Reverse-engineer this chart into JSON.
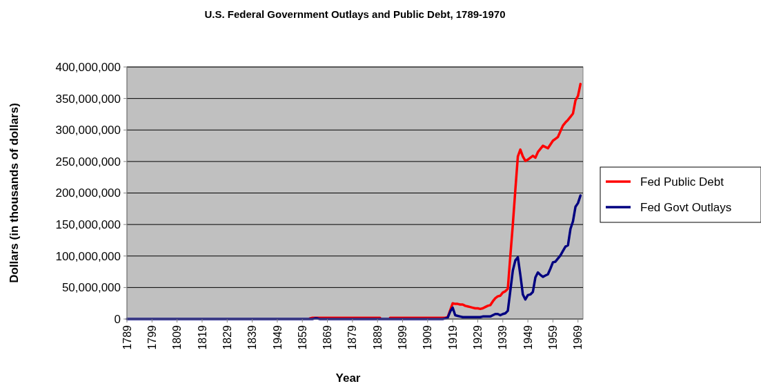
{
  "chart_data": {
    "type": "line",
    "title": "U.S. Federal Government Outlays and Public Debt, 1789-1970",
    "xlabel": "Year",
    "ylabel": "Dollars (in thousands of dollars)",
    "categories": [
      "1789",
      null,
      null,
      null,
      null,
      null,
      null,
      null,
      null,
      null,
      "1799",
      null,
      null,
      null,
      null,
      null,
      null,
      null,
      null,
      null,
      "1809",
      null,
      null,
      null,
      null,
      null,
      null,
      null,
      null,
      null,
      "1819",
      null,
      null,
      null,
      null,
      null,
      null,
      null,
      null,
      null,
      "1829",
      null,
      null,
      null,
      null,
      null,
      null,
      null,
      null,
      null,
      "1839",
      null,
      null,
      null,
      null,
      null,
      null,
      null,
      null,
      null,
      "1949",
      null,
      null,
      null,
      null,
      null,
      null,
      null,
      null,
      null,
      "1859",
      null,
      null,
      null,
      null,
      null,
      null,
      null,
      null,
      null,
      "1869",
      null,
      null,
      null,
      null,
      null,
      null,
      null,
      null,
      null,
      "1879",
      null,
      null,
      null,
      null,
      null,
      null,
      null,
      null,
      null,
      "1889",
      null,
      null,
      null,
      null,
      null,
      null,
      null,
      null,
      null,
      "1899",
      null,
      null,
      null,
      null,
      null,
      null,
      null,
      null,
      null,
      "1909",
      null,
      null,
      null,
      null,
      null,
      null,
      null,
      null,
      null,
      "1919",
      null,
      null,
      null,
      null,
      null,
      null,
      null,
      null,
      null,
      "1929",
      null,
      null,
      null,
      null,
      null,
      null,
      null,
      null,
      null,
      "1939",
      null,
      null,
      null,
      null,
      null,
      null,
      null,
      null,
      null,
      "1949",
      null,
      null,
      null,
      null,
      null,
      null,
      null,
      null,
      null,
      "1959",
      null,
      null,
      null,
      null,
      null,
      null,
      null,
      null,
      null,
      "1969",
      null
    ],
    "ylim": [
      0,
      400000000
    ],
    "yticks": [
      0,
      {
        "value": 50000000,
        "label": "50,000,000"
      },
      {
        "value": 100000000,
        "label": "100,000,000"
      },
      {
        "value": 150000000,
        "label": "150,000,000"
      },
      {
        "value": 200000000,
        "label": "200,000,000"
      },
      {
        "value": 250000000,
        "label": "250,000,000"
      },
      {
        "value": 300000000,
        "label": "300,000,000"
      },
      {
        "value": 350000000,
        "label": "350,000,000"
      },
      {
        "value": 400000000,
        "label": "400,000,000"
      }
    ],
    "grid": "y",
    "legend": "right",
    "line_style": "solid",
    "series": [
      {
        "name": "Fed Public Debt",
        "color": "#ff0000",
        "values": [
          null,
          null,
          null,
          null,
          null,
          null,
          null,
          null,
          null,
          null,
          null,
          null,
          null,
          null,
          null,
          null,
          null,
          null,
          null,
          null,
          null,
          null,
          null,
          null,
          null,
          null,
          null,
          null,
          null,
          null,
          null,
          null,
          null,
          null,
          null,
          null,
          null,
          null,
          null,
          null,
          null,
          null,
          null,
          null,
          null,
          null,
          null,
          null,
          null,
          null,
          null,
          null,
          null,
          null,
          null,
          null,
          null,
          null,
          null,
          null,
          null,
          null,
          null,
          null,
          null,
          null,
          null,
          null,
          null,
          null,
          null,
          null,
          null,
          1000000,
          2000000,
          2000000,
          2000000,
          2000000,
          2000000,
          2000000,
          2000000,
          2000000,
          2000000,
          2000000,
          2000000,
          2000000,
          2000000,
          2000000,
          2000000,
          2000000,
          2000000,
          2000000,
          2000000,
          2000000,
          2000000,
          2000000,
          2000000,
          2000000,
          2000000,
          2000000,
          2000000,
          2000000,
          null,
          null,
          null,
          2000000,
          2000000,
          2000000,
          2000000,
          2000000,
          2000000,
          2000000,
          2000000,
          2000000,
          2000000,
          2000000,
          2000000,
          2000000,
          2000000,
          2000000,
          2000000,
          2000000,
          2000000,
          2000000,
          2000000,
          2000000,
          2000000,
          2000000,
          3000000,
          14000000,
          25000000,
          24000000,
          24000000,
          23000000,
          23000000,
          21000000,
          20000000,
          19000000,
          18000000,
          17000000,
          17000000,
          16000000,
          17000000,
          19000000,
          21000000,
          22000000,
          28000000,
          33000000,
          36000000,
          37000000,
          42000000,
          44000000,
          48000000,
          100000000,
          150000000,
          205000000,
          258000000,
          269000000,
          258000000,
          251000000,
          253000000,
          256000000,
          259000000,
          256000000,
          265000000,
          270000000,
          275000000,
          273000000,
          271000000,
          277000000,
          283000000,
          286000000,
          289000000,
          298000000,
          307000000,
          312000000,
          316000000,
          321000000,
          326000000,
          347000000,
          354000000,
          373000000
        ]
      },
      {
        "name": "Fed Govt Outlays",
        "color": "#000080",
        "values": [
          0,
          0,
          0,
          0,
          0,
          0,
          0,
          0,
          0,
          0,
          0,
          0,
          0,
          0,
          0,
          0,
          0,
          0,
          0,
          0,
          0,
          0,
          0,
          0,
          0,
          0,
          0,
          0,
          0,
          0,
          0,
          0,
          0,
          0,
          0,
          0,
          0,
          0,
          0,
          0,
          0,
          0,
          0,
          0,
          0,
          0,
          0,
          0,
          0,
          0,
          0,
          0,
          0,
          0,
          0,
          0,
          0,
          0,
          0,
          0,
          0,
          0,
          0,
          0,
          0,
          0,
          0,
          0,
          0,
          0,
          0,
          0,
          0,
          0,
          0,
          1000000,
          1000000,
          0,
          0,
          0,
          0,
          0,
          0,
          0,
          0,
          0,
          0,
          0,
          0,
          0,
          0,
          0,
          0,
          0,
          0,
          0,
          0,
          0,
          0,
          0,
          0,
          0,
          0,
          0,
          0,
          0,
          0,
          0,
          0,
          0,
          0,
          0,
          0,
          0,
          0,
          0,
          0,
          0,
          0,
          0,
          0,
          0,
          0,
          0,
          0,
          0,
          0,
          1000000,
          2000000,
          12000000,
          18000000,
          6000000,
          5000000,
          4000000,
          3000000,
          3000000,
          3000000,
          3000000,
          3000000,
          3000000,
          3000000,
          3000000,
          4000000,
          4000000,
          4000000,
          4000000,
          6000000,
          8000000,
          8000000,
          6000000,
          8000000,
          9000000,
          13000000,
          45000000,
          77000000,
          93000000,
          98000000,
          70000000,
          39000000,
          31000000,
          38000000,
          39000000,
          43000000,
          66000000,
          74000000,
          70000000,
          67000000,
          69000000,
          71000000,
          80000000,
          90000000,
          91000000,
          96000000,
          101000000,
          108000000,
          115000000,
          117000000,
          143000000,
          155000000,
          178000000,
          184000000,
          196000000
        ]
      }
    ]
  }
}
